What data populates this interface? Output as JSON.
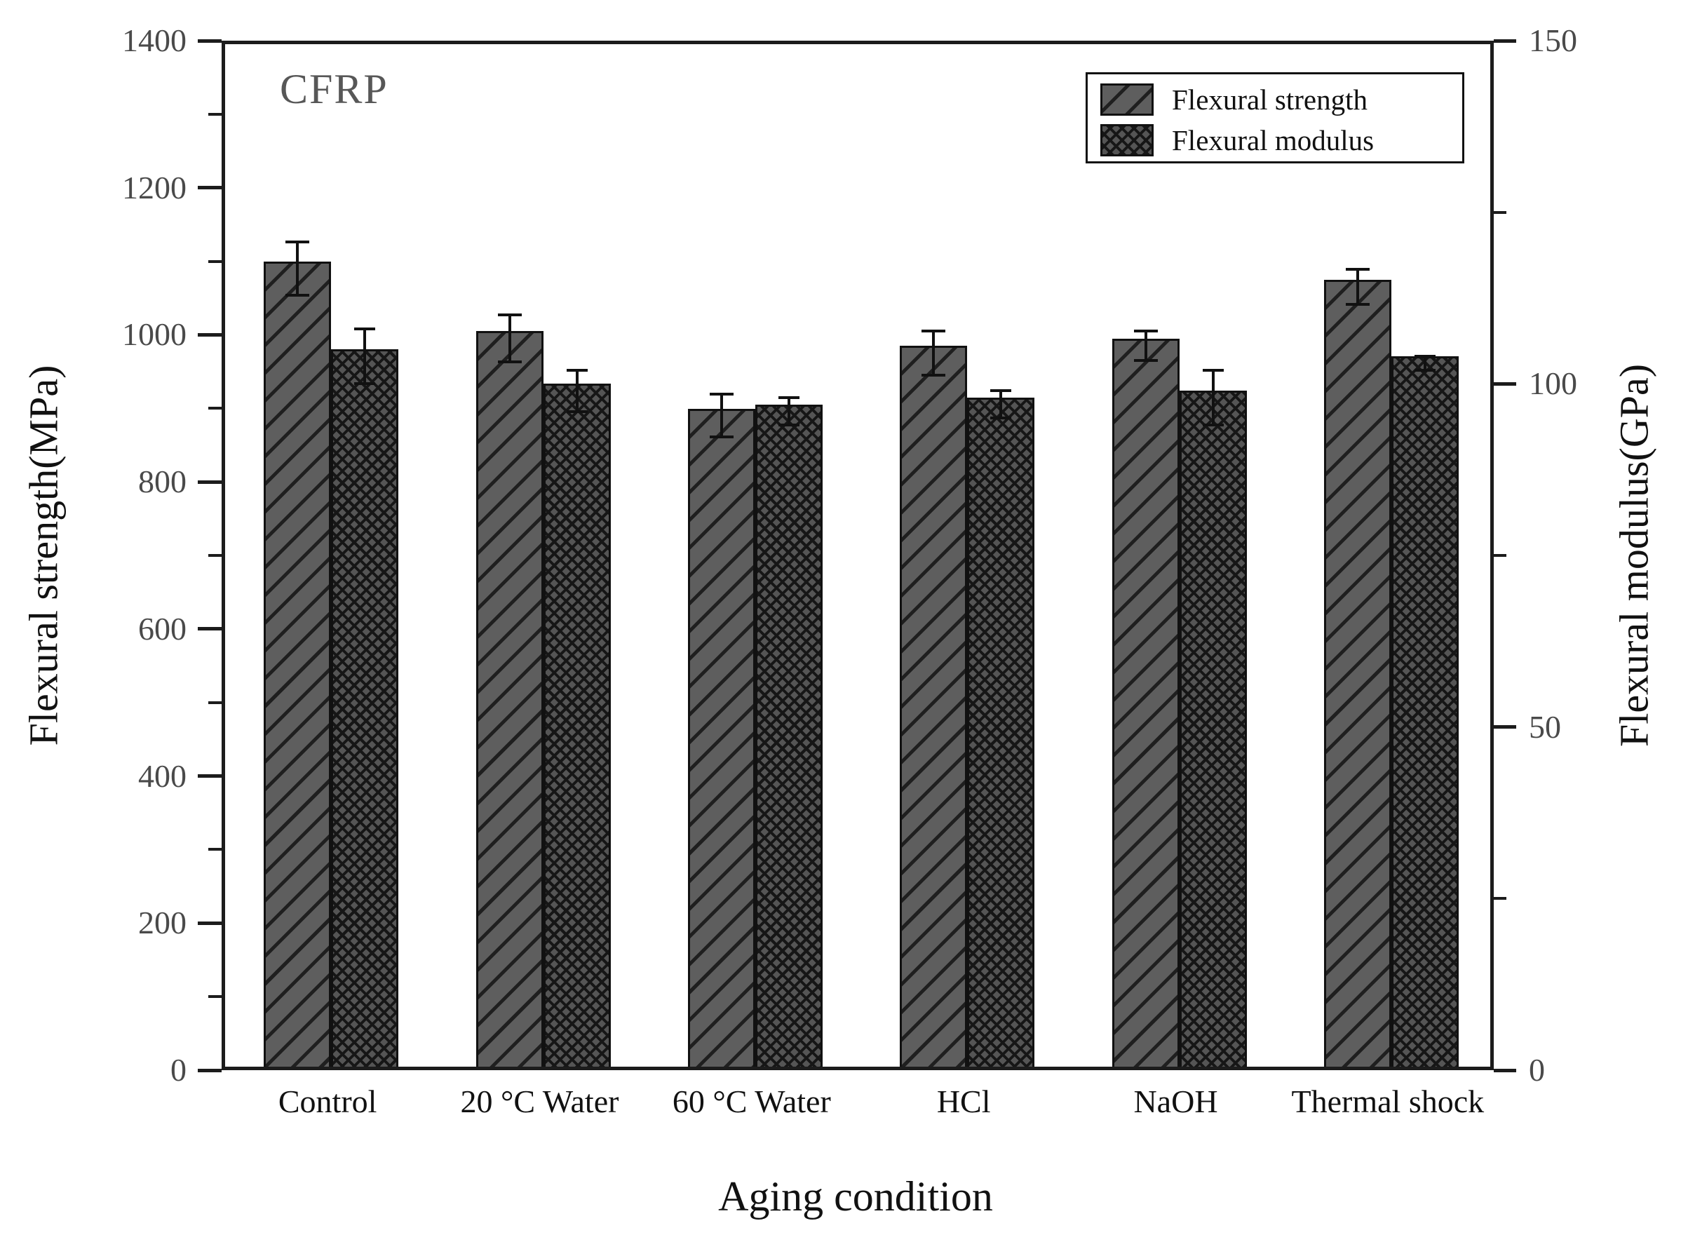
{
  "figure": {
    "background": "#ffffff"
  },
  "chart_data": {
    "type": "bar",
    "title": "CFRP",
    "xlabel": "Aging condition",
    "categories": [
      "Control",
      "20 °C Water",
      "60 °C Water",
      "HCl",
      "NaOH",
      "Thermal shock"
    ],
    "left_axis": {
      "label": "Flexural strength(MPa)",
      "min": 0,
      "max": 1400,
      "major_ticks": [
        0,
        200,
        400,
        600,
        800,
        1000,
        1200,
        1400
      ],
      "minor_ticks": [
        100,
        300,
        500,
        700,
        900,
        1100,
        1300
      ]
    },
    "right_axis": {
      "label": "Flexural modulus(GPa)",
      "min": 0,
      "max": 150,
      "major_ticks": [
        0,
        50,
        100,
        150
      ],
      "minor_ticks": [
        25,
        75,
        125
      ]
    },
    "series": [
      {
        "name": "Flexural strength",
        "axis": "left",
        "unit": "MPa",
        "pattern": "diagonal-hatch",
        "values": [
          1095,
          1000,
          895,
          980,
          990,
          1070
        ],
        "errors": [
          36,
          32,
          29,
          30,
          20,
          24
        ]
      },
      {
        "name": "Flexural modulus",
        "axis": "right",
        "unit": "GPa",
        "pattern": "cross-hatch",
        "values": [
          104.5,
          99.5,
          96.5,
          97.5,
          98.5,
          103.5
        ],
        "errors": [
          4,
          3,
          2,
          2,
          4,
          1
        ]
      }
    ],
    "legend": {
      "position": "top-right"
    },
    "grid": false,
    "colors": {
      "bar_fill": "#5e5e5e",
      "hatch": "#1f1f1f",
      "axis": "#1c1c1c",
      "tick_label": "#4a4a4a",
      "title": "#575757"
    }
  }
}
